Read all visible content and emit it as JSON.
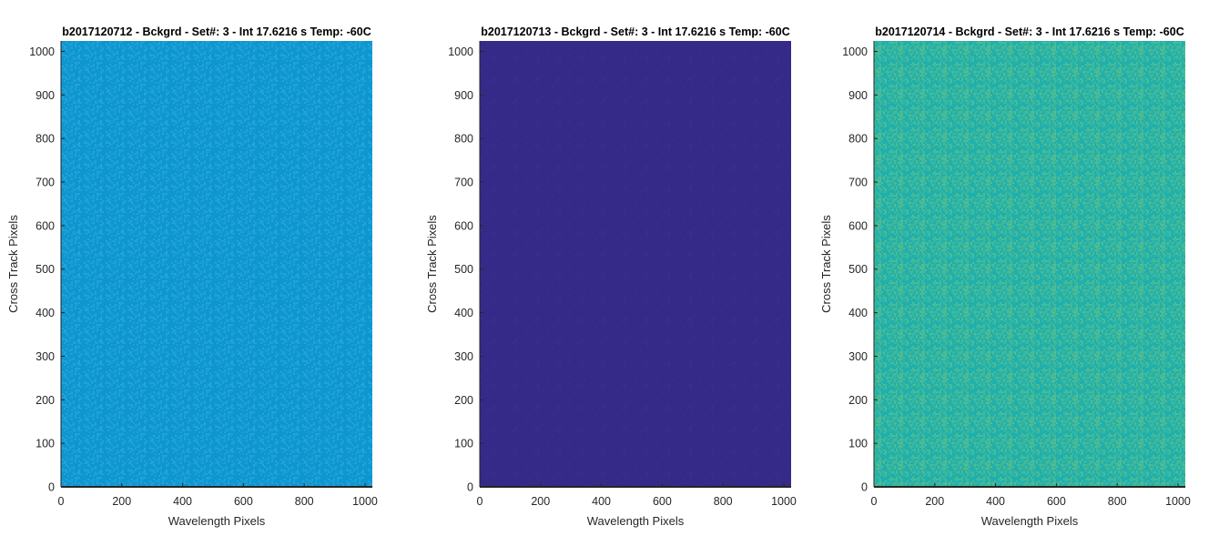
{
  "chart_data": [
    {
      "type": "heatmap",
      "title": "b2017120712 - Bckgrd - Set#: 3 - Int 17.6216 s Temp: -60C",
      "xlabel": "Wavelength Pixels",
      "ylabel": "Cross Track Pixels",
      "xlim": [
        0,
        1024
      ],
      "ylim": [
        0,
        1024
      ],
      "xticks": [
        "0",
        "200",
        "400",
        "600",
        "800",
        "1000"
      ],
      "yticks": [
        "0",
        "100",
        "200",
        "300",
        "400",
        "500",
        "600",
        "700",
        "800",
        "900",
        "1000"
      ],
      "fill_color": "#0e96d0",
      "noise_color": "#2aa7da",
      "noise_level": 0.35,
      "grid": false
    },
    {
      "type": "heatmap",
      "title": "b2017120713 - Bckgrd - Set#: 3 - Int 17.6216 s Temp: -60C",
      "xlabel": "Wavelength Pixels",
      "ylabel": "Cross Track Pixels",
      "xlim": [
        0,
        1024
      ],
      "ylim": [
        0,
        1024
      ],
      "xticks": [
        "0",
        "200",
        "400",
        "600",
        "800",
        "1000"
      ],
      "yticks": [
        "0",
        "100",
        "200",
        "300",
        "400",
        "500",
        "600",
        "700",
        "800",
        "900",
        "1000"
      ],
      "fill_color": "#352a87",
      "noise_color": "#3a2f8f",
      "noise_level": 0.08,
      "grid": false
    },
    {
      "type": "heatmap",
      "title": "b2017120714 - Bckgrd - Set#: 3 - Int 17.6216 s Temp: -60C",
      "xlabel": "Wavelength Pixels",
      "ylabel": "Cross Track Pixels",
      "xlim": [
        0,
        1024
      ],
      "ylim": [
        0,
        1024
      ],
      "xticks": [
        "0",
        "200",
        "400",
        "600",
        "800",
        "1000"
      ],
      "yticks": [
        "0",
        "100",
        "200",
        "300",
        "400",
        "500",
        "600",
        "700",
        "800",
        "900",
        "1000"
      ],
      "fill_color": "#1fb0ad",
      "noise_color": "#5cbf8a",
      "noise_level": 0.55,
      "grid": false
    }
  ]
}
